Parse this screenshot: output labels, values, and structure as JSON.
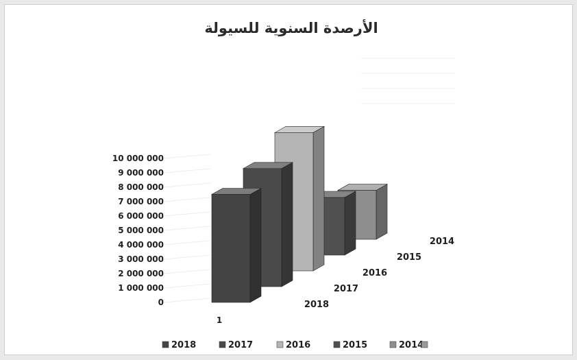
{
  "chart_data": {
    "type": "bar",
    "variant": "3d-column",
    "title": "الأرصدة السنوية للسيولة",
    "categories": [
      "1"
    ],
    "series": [
      {
        "name": "2018",
        "values": [
          7500000
        ],
        "color": "#444444"
      },
      {
        "name": "2017",
        "values": [
          8200000
        ],
        "color": "#4a4a4a"
      },
      {
        "name": "2016",
        "values": [
          9600000
        ],
        "color": "#b5b5b5"
      },
      {
        "name": "2015",
        "values": [
          4000000
        ],
        "color": "#505050"
      },
      {
        "name": "2014",
        "values": [
          3400000
        ],
        "color": "#8e8e8e"
      }
    ],
    "series_axis_labels": [
      "2018",
      "2017",
      "2016",
      "2015",
      "2014"
    ],
    "y_ticks": [
      "0",
      "1 000 000",
      "2 000 000",
      "3 000 000",
      "4 000 000",
      "5 000 000",
      "6 000 000",
      "7 000 000",
      "8 000 000",
      "9 000 000",
      "10 000 000"
    ],
    "ylim": [
      0,
      10000000
    ],
    "grid": true,
    "legend_position": "bottom"
  }
}
